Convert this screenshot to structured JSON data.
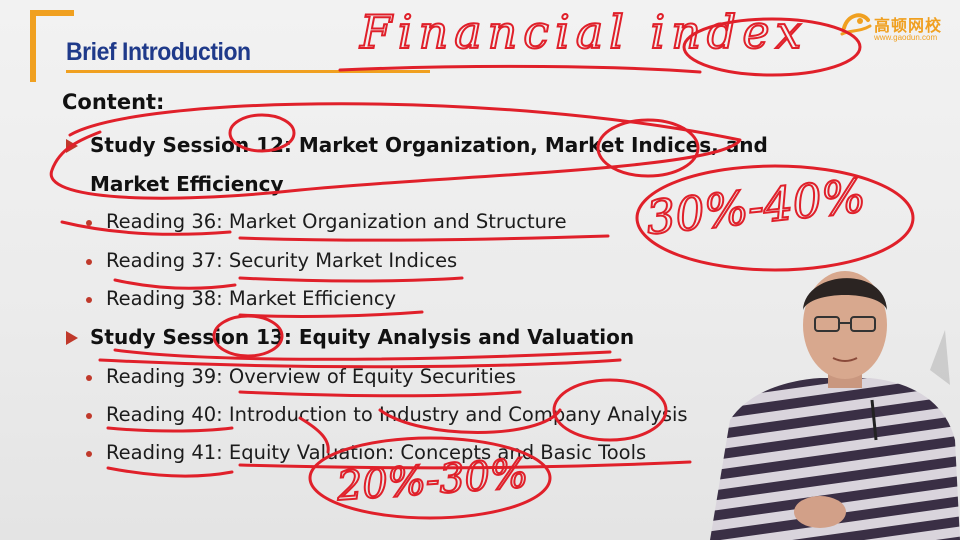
{
  "slide": {
    "title": "Brief Introduction",
    "content_heading": "Content:",
    "sessions": [
      {
        "label": "Study Session 12: Market Organization, Market Indices, and",
        "label_cont": "Market Efficiency",
        "readings": [
          "Reading 36: Market Organization and Structure",
          "Reading 37: Security Market Indices",
          "Reading 38: Market Efficiency"
        ]
      },
      {
        "label": "Study Session 13: Equity Analysis and Valuation",
        "readings": [
          "Reading 39: Overview of Equity Securities",
          "Reading 40: Introduction to Industry and Company Analysis",
          "Reading 41: Equity Valuation: Concepts and Basic Tools"
        ]
      }
    ]
  },
  "logo": {
    "cn_text": "高顿网校",
    "url": "www.gaodun.com"
  },
  "handwriting": {
    "heading_note": "Financial index",
    "weight_note_1": "30%-40%",
    "weight_note_2": "20%-30%"
  },
  "colors": {
    "title_blue": "#1f3a8a",
    "accent_orange": "#f0a020",
    "bullet_red": "#c0392b",
    "ink_red": "#e0202a"
  },
  "icons": {
    "session_bullet": "arrow-right-icon",
    "reading_bullet": "dot-icon",
    "logo_mark": "gaodun-logo-icon"
  }
}
